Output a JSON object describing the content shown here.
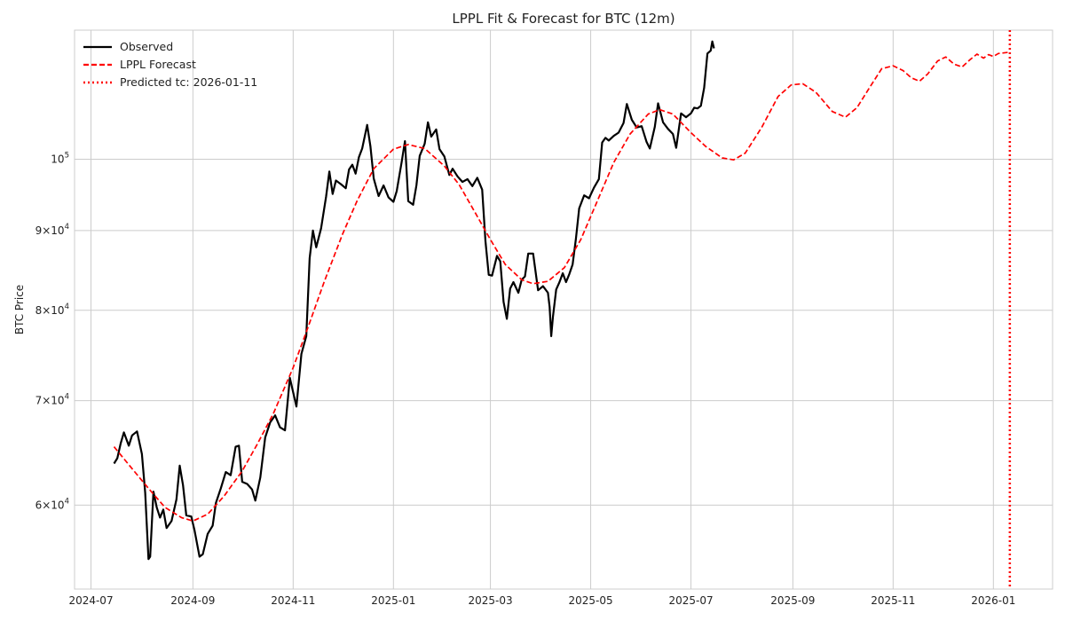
{
  "chart_data": {
    "type": "line",
    "title": "LPPL Fit & Forecast for BTC (12m)",
    "xlabel": "",
    "ylabel": "BTC Price",
    "yscale": "log",
    "x_range": [
      "2024-06-21",
      "2026-02-06"
    ],
    "ylim": [
      53000,
      121000
    ],
    "x_ticks": [
      "2024-07",
      "2024-09",
      "2024-11",
      "2025-01",
      "2025-03",
      "2025-05",
      "2025-07",
      "2025-09",
      "2025-11",
      "2026-01"
    ],
    "y_ticks": [
      {
        "value": 60000,
        "base": "6",
        "exp": "4"
      },
      {
        "value": 70000,
        "base": "7",
        "exp": "4"
      },
      {
        "value": 80000,
        "base": "8",
        "exp": "4"
      },
      {
        "value": 90000,
        "base": "9",
        "exp": "4"
      },
      {
        "value": 100000,
        "base": "10",
        "exp": "5",
        "no_coeff": true
      }
    ],
    "grid": true,
    "legend_position": "top-left",
    "series": [
      {
        "name": "Observed",
        "color": "#000000",
        "style": "solid",
        "points": [
          [
            "2024-07-15",
            63800
          ],
          [
            "2024-07-17",
            64300
          ],
          [
            "2024-07-19",
            65700
          ],
          [
            "2024-07-21",
            66800
          ],
          [
            "2024-07-24",
            65500
          ],
          [
            "2024-07-26",
            66500
          ],
          [
            "2024-07-29",
            66900
          ],
          [
            "2024-08-01",
            64700
          ],
          [
            "2024-08-03",
            61100
          ],
          [
            "2024-08-05",
            55400
          ],
          [
            "2024-08-06",
            55600
          ],
          [
            "2024-08-08",
            61200
          ],
          [
            "2024-08-10",
            59800
          ],
          [
            "2024-08-12",
            58900
          ],
          [
            "2024-08-14",
            59600
          ],
          [
            "2024-08-16",
            58000
          ],
          [
            "2024-08-19",
            58600
          ],
          [
            "2024-08-22",
            60500
          ],
          [
            "2024-08-24",
            63600
          ],
          [
            "2024-08-26",
            61800
          ],
          [
            "2024-08-28",
            59100
          ],
          [
            "2024-08-31",
            59000
          ],
          [
            "2024-09-02",
            57800
          ],
          [
            "2024-09-05",
            55600
          ],
          [
            "2024-09-07",
            55800
          ],
          [
            "2024-09-10",
            57500
          ],
          [
            "2024-09-13",
            58200
          ],
          [
            "2024-09-15",
            60200
          ],
          [
            "2024-09-18",
            61500
          ],
          [
            "2024-09-21",
            63000
          ],
          [
            "2024-09-24",
            62700
          ],
          [
            "2024-09-27",
            65400
          ],
          [
            "2024-09-29",
            65500
          ],
          [
            "2024-10-01",
            62100
          ],
          [
            "2024-10-04",
            61900
          ],
          [
            "2024-10-07",
            61400
          ],
          [
            "2024-10-09",
            60400
          ],
          [
            "2024-10-12",
            62500
          ],
          [
            "2024-10-15",
            66300
          ],
          [
            "2024-10-18",
            67800
          ],
          [
            "2024-10-21",
            68500
          ],
          [
            "2024-10-24",
            67300
          ],
          [
            "2024-10-27",
            67000
          ],
          [
            "2024-10-30",
            72400
          ],
          [
            "2024-11-03",
            69400
          ],
          [
            "2024-11-06",
            75000
          ],
          [
            "2024-11-09",
            77000
          ],
          [
            "2024-11-11",
            86400
          ],
          [
            "2024-11-13",
            90000
          ],
          [
            "2024-11-15",
            87800
          ],
          [
            "2024-11-18",
            90300
          ],
          [
            "2024-11-21",
            94600
          ],
          [
            "2024-11-23",
            98200
          ],
          [
            "2024-11-25",
            95000
          ],
          [
            "2024-11-27",
            96900
          ],
          [
            "2024-11-30",
            96400
          ],
          [
            "2024-12-03",
            95800
          ],
          [
            "2024-12-05",
            98500
          ],
          [
            "2024-12-07",
            99200
          ],
          [
            "2024-12-09",
            97900
          ],
          [
            "2024-12-11",
            100300
          ],
          [
            "2024-12-13",
            101600
          ],
          [
            "2024-12-16",
            105200
          ],
          [
            "2024-12-18",
            101900
          ],
          [
            "2024-12-20",
            97200
          ],
          [
            "2024-12-23",
            94700
          ],
          [
            "2024-12-26",
            96200
          ],
          [
            "2024-12-29",
            94500
          ],
          [
            "2025-01-01",
            93900
          ],
          [
            "2025-01-03",
            95400
          ],
          [
            "2025-01-06",
            99600
          ],
          [
            "2025-01-08",
            102700
          ],
          [
            "2025-01-10",
            94000
          ],
          [
            "2025-01-13",
            93500
          ],
          [
            "2025-01-15",
            96200
          ],
          [
            "2025-01-17",
            100500
          ],
          [
            "2025-01-20",
            102300
          ],
          [
            "2025-01-22",
            105600
          ],
          [
            "2025-01-24",
            103400
          ],
          [
            "2025-01-27",
            104500
          ],
          [
            "2025-01-29",
            101500
          ],
          [
            "2025-02-01",
            100400
          ],
          [
            "2025-02-04",
            97700
          ],
          [
            "2025-02-06",
            98600
          ],
          [
            "2025-02-09",
            97500
          ],
          [
            "2025-02-12",
            96700
          ],
          [
            "2025-02-15",
            97100
          ],
          [
            "2025-02-18",
            96100
          ],
          [
            "2025-02-21",
            97300
          ],
          [
            "2025-02-24",
            95600
          ],
          [
            "2025-02-26",
            88600
          ],
          [
            "2025-02-28",
            84300
          ],
          [
            "2025-03-02",
            84200
          ],
          [
            "2025-03-05",
            86700
          ],
          [
            "2025-03-07",
            86000
          ],
          [
            "2025-03-09",
            81000
          ],
          [
            "2025-03-11",
            79000
          ],
          [
            "2025-03-13",
            82600
          ],
          [
            "2025-03-15",
            83400
          ],
          [
            "2025-03-18",
            82100
          ],
          [
            "2025-03-20",
            83700
          ],
          [
            "2025-03-22",
            84100
          ],
          [
            "2025-03-24",
            87000
          ],
          [
            "2025-03-27",
            87000
          ],
          [
            "2025-03-30",
            82400
          ],
          [
            "2025-04-02",
            82900
          ],
          [
            "2025-04-05",
            82100
          ],
          [
            "2025-04-06",
            80400
          ],
          [
            "2025-04-07",
            77000
          ],
          [
            "2025-04-08",
            79200
          ],
          [
            "2025-04-10",
            82500
          ],
          [
            "2025-04-12",
            83400
          ],
          [
            "2025-04-14",
            84500
          ],
          [
            "2025-04-16",
            83400
          ],
          [
            "2025-04-18",
            84400
          ],
          [
            "2025-04-20",
            85600
          ],
          [
            "2025-04-22",
            88900
          ],
          [
            "2025-04-24",
            93000
          ],
          [
            "2025-04-27",
            94800
          ],
          [
            "2025-04-30",
            94400
          ],
          [
            "2025-05-03",
            95900
          ],
          [
            "2025-05-06",
            97100
          ],
          [
            "2025-05-08",
            102500
          ],
          [
            "2025-05-10",
            103200
          ],
          [
            "2025-05-12",
            102800
          ],
          [
            "2025-05-15",
            103500
          ],
          [
            "2025-05-18",
            104000
          ],
          [
            "2025-05-21",
            105500
          ],
          [
            "2025-05-23",
            108500
          ],
          [
            "2025-05-26",
            106000
          ],
          [
            "2025-05-29",
            104800
          ],
          [
            "2025-06-01",
            105000
          ],
          [
            "2025-06-04",
            102600
          ],
          [
            "2025-06-06",
            101600
          ],
          [
            "2025-06-09",
            104900
          ],
          [
            "2025-06-11",
            108600
          ],
          [
            "2025-06-14",
            105600
          ],
          [
            "2025-06-17",
            104600
          ],
          [
            "2025-06-20",
            103800
          ],
          [
            "2025-06-22",
            101700
          ],
          [
            "2025-06-25",
            107000
          ],
          [
            "2025-06-28",
            106400
          ],
          [
            "2025-07-01",
            107000
          ],
          [
            "2025-07-03",
            107900
          ],
          [
            "2025-07-05",
            107800
          ],
          [
            "2025-07-07",
            108200
          ],
          [
            "2025-07-09",
            111100
          ],
          [
            "2025-07-11",
            116900
          ],
          [
            "2025-07-13",
            117400
          ],
          [
            "2025-07-14",
            119000
          ],
          [
            "2025-07-15",
            117800
          ]
        ]
      },
      {
        "name": "LPPL Forecast",
        "color": "#ff0000",
        "style": "dashed",
        "points": [
          [
            "2024-07-15",
            65400
          ],
          [
            "2024-07-25",
            63500
          ],
          [
            "2024-08-05",
            61500
          ],
          [
            "2024-08-15",
            59800
          ],
          [
            "2024-08-25",
            58900
          ],
          [
            "2024-09-01",
            58600
          ],
          [
            "2024-09-10",
            59200
          ],
          [
            "2024-09-20",
            60800
          ],
          [
            "2024-10-01",
            63100
          ],
          [
            "2024-10-10",
            65600
          ],
          [
            "2024-10-20",
            68700
          ],
          [
            "2024-11-01",
            73500
          ],
          [
            "2024-11-10",
            78000
          ],
          [
            "2024-11-20",
            83500
          ],
          [
            "2024-12-01",
            89500
          ],
          [
            "2024-12-10",
            94100
          ],
          [
            "2024-12-20",
            98600
          ],
          [
            "2025-01-01",
            101500
          ],
          [
            "2025-01-10",
            102200
          ],
          [
            "2025-01-20",
            101600
          ],
          [
            "2025-02-01",
            99000
          ],
          [
            "2025-02-10",
            96300
          ],
          [
            "2025-02-20",
            92300
          ],
          [
            "2025-03-01",
            88800
          ],
          [
            "2025-03-10",
            85600
          ],
          [
            "2025-03-20",
            83700
          ],
          [
            "2025-03-27",
            83200
          ],
          [
            "2025-04-05",
            83500
          ],
          [
            "2025-04-15",
            85200
          ],
          [
            "2025-04-25",
            88800
          ],
          [
            "2025-05-05",
            94000
          ],
          [
            "2025-05-15",
            99500
          ],
          [
            "2025-05-25",
            103800
          ],
          [
            "2025-06-05",
            106900
          ],
          [
            "2025-06-12",
            107600
          ],
          [
            "2025-06-20",
            106900
          ],
          [
            "2025-07-01",
            104000
          ],
          [
            "2025-07-10",
            101900
          ],
          [
            "2025-07-20",
            100200
          ],
          [
            "2025-07-27",
            99900
          ],
          [
            "2025-08-03",
            100900
          ],
          [
            "2025-08-13",
            104800
          ],
          [
            "2025-08-23",
            109700
          ],
          [
            "2025-08-31",
            111600
          ],
          [
            "2025-09-07",
            111800
          ],
          [
            "2025-09-15",
            110400
          ],
          [
            "2025-09-25",
            107300
          ],
          [
            "2025-10-03",
            106400
          ],
          [
            "2025-10-10",
            107900
          ],
          [
            "2025-10-18",
            111300
          ],
          [
            "2025-10-25",
            114300
          ],
          [
            "2025-11-01",
            114800
          ],
          [
            "2025-11-07",
            114000
          ],
          [
            "2025-11-12",
            112800
          ],
          [
            "2025-11-17",
            112200
          ],
          [
            "2025-11-22",
            113400
          ],
          [
            "2025-11-28",
            115600
          ],
          [
            "2025-12-03",
            116300
          ],
          [
            "2025-12-08",
            115100
          ],
          [
            "2025-12-13",
            114600
          ],
          [
            "2025-12-18",
            115900
          ],
          [
            "2025-12-22",
            116800
          ],
          [
            "2025-12-26",
            116100
          ],
          [
            "2025-12-29",
            116700
          ],
          [
            "2026-01-01",
            116400
          ],
          [
            "2026-01-04",
            116900
          ],
          [
            "2026-01-07",
            117000
          ],
          [
            "2026-01-10",
            117100
          ]
        ]
      },
      {
        "name": "Predicted tc: 2026-01-11",
        "color": "#ff0000",
        "style": "dotted",
        "type": "vline",
        "x": "2026-01-11"
      }
    ]
  }
}
